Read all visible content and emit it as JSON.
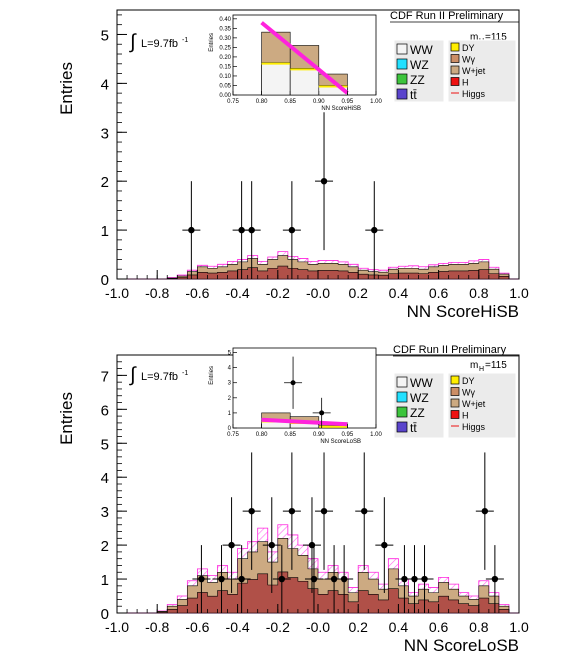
{
  "colors": {
    "WW": "#f4f4f4",
    "WZ": "#22e0ff",
    "ZZ": "#3cc43c",
    "tt": "#5a44cc",
    "DY": "#ffee00",
    "Wg": "#cc8e66",
    "Wjet": "#ccaa82",
    "H": "#ee1111",
    "Higgs": "#ff22dd",
    "hatch": "#ff66ee",
    "stack_dark": "#b05048"
  },
  "chart_data": [
    {
      "type": "bar",
      "panel": "top",
      "header": "CDF Run II Preliminary",
      "mass_label": "m",
      "mass_sub": "H",
      "mass_value": "=115",
      "lumi_prefix": "L=9.7fb",
      "lumi_sup": "-1",
      "integral_symbol": "∫",
      "xlabel": "NN ScoreHiSB",
      "ylabel": "Entries",
      "xlim": [
        -1.0,
        1.0
      ],
      "ylim": [
        0,
        5.5
      ],
      "xtick_labels": [
        "-1.0",
        "-0.8",
        "-0.6",
        "-0.4",
        "-0.2",
        "-0.0",
        "0.2",
        "0.4",
        "0.6",
        "0.8",
        "1.0"
      ],
      "ytick_labels": [
        "0",
        "1",
        "2",
        "3",
        "4",
        "5"
      ],
      "legend_left": [
        "WW",
        "WZ",
        "ZZ",
        "tt̄"
      ],
      "legend_right": [
        "DY",
        "Wγ",
        "W+jet",
        "H",
        "Higgs"
      ],
      "bin_edges": [
        -1.0,
        -0.95,
        -0.9,
        -0.85,
        -0.8,
        -0.75,
        -0.7,
        -0.65,
        -0.6,
        -0.55,
        -0.5,
        -0.45,
        -0.4,
        -0.35,
        -0.3,
        -0.25,
        -0.2,
        -0.15,
        -0.1,
        -0.05,
        0.0,
        0.05,
        0.1,
        0.15,
        0.2,
        0.25,
        0.3,
        0.35,
        0.4,
        0.45,
        0.5,
        0.55,
        0.6,
        0.65,
        0.7,
        0.75,
        0.8,
        0.85,
        0.9,
        0.95,
        1.0
      ],
      "series": [
        {
          "name": "W+jet",
          "values": [
            0,
            0,
            0,
            0,
            0,
            0.02,
            0.06,
            0.15,
            0.25,
            0.22,
            0.25,
            0.3,
            0.35,
            0.42,
            0.3,
            0.4,
            0.48,
            0.4,
            0.35,
            0.3,
            0.32,
            0.32,
            0.3,
            0.25,
            0.18,
            0.15,
            0.14,
            0.2,
            0.22,
            0.22,
            0.2,
            0.25,
            0.28,
            0.3,
            0.3,
            0.32,
            0.35,
            0.2,
            0.1,
            0
          ]
        },
        {
          "name": "Higgs",
          "values": [
            0,
            0,
            0,
            0,
            0,
            0.03,
            0.08,
            0.18,
            0.28,
            0.26,
            0.3,
            0.36,
            0.4,
            0.48,
            0.36,
            0.45,
            0.56,
            0.46,
            0.42,
            0.36,
            0.38,
            0.38,
            0.35,
            0.3,
            0.22,
            0.19,
            0.18,
            0.24,
            0.26,
            0.27,
            0.25,
            0.29,
            0.32,
            0.34,
            0.34,
            0.37,
            0.4,
            0.24,
            0.12,
            0
          ]
        }
      ],
      "points": [
        {
          "x": -0.63,
          "y": 1,
          "err": 1
        },
        {
          "x": -0.38,
          "y": 1,
          "err": 1
        },
        {
          "x": -0.33,
          "y": 1,
          "err": 1
        },
        {
          "x": -0.13,
          "y": 1,
          "err": 1
        },
        {
          "x": 0.03,
          "y": 2,
          "err": 1.41
        },
        {
          "x": 0.28,
          "y": 1,
          "err": 1
        }
      ],
      "inset": {
        "xlabel": "NN ScoreHiSB",
        "ylabel": "Entries",
        "xlim": [
          0.75,
          1.0
        ],
        "ylim": [
          0,
          0.42
        ],
        "xtick_labels": [
          "0.75",
          "0.80",
          "0.85",
          "0.90",
          "0.95",
          "1.00"
        ],
        "ytick_labels": [
          "0.00",
          "0.05",
          "0.10",
          "0.15",
          "0.20",
          "0.25",
          "0.30",
          "0.35",
          "0.40"
        ],
        "bin_edges": [
          0.8,
          0.85,
          0.9,
          0.95
        ],
        "stack_total": [
          0.33,
          0.26,
          0.11
        ],
        "ww_level": [
          0.17,
          0.14,
          0.05
        ],
        "higgs_line": [
          [
            0.8,
            0.38
          ],
          [
            0.95,
            0.01
          ]
        ],
        "points": []
      }
    },
    {
      "type": "bar",
      "panel": "bottom",
      "header": "CDF Run II Preliminary",
      "mass_label": "m",
      "mass_sub": "H",
      "mass_value": "=115",
      "lumi_prefix": "L=9.7fb",
      "lumi_sup": "-1",
      "integral_symbol": "∫",
      "xlabel": "NN ScoreLoSB",
      "ylabel": "Entries",
      "xlim": [
        -1.0,
        1.0
      ],
      "ylim": [
        0,
        7.6
      ],
      "xtick_labels": [
        "-1.0",
        "-0.8",
        "-0.6",
        "-0.4",
        "-0.2",
        "-0.0",
        "0.2",
        "0.4",
        "0.6",
        "0.8",
        "1.0"
      ],
      "ytick_labels": [
        "0",
        "1",
        "2",
        "3",
        "4",
        "5",
        "6",
        "7"
      ],
      "legend_left": [
        "WW",
        "WZ",
        "ZZ",
        "tt̄"
      ],
      "legend_right": [
        "DY",
        "Wγ",
        "W+jet",
        "H",
        "Higgs"
      ],
      "bin_edges": [
        -1.0,
        -0.95,
        -0.9,
        -0.85,
        -0.8,
        -0.75,
        -0.7,
        -0.65,
        -0.6,
        -0.55,
        -0.5,
        -0.45,
        -0.4,
        -0.35,
        -0.3,
        -0.25,
        -0.2,
        -0.15,
        -0.1,
        -0.05,
        0.0,
        0.05,
        0.1,
        0.15,
        0.2,
        0.25,
        0.3,
        0.35,
        0.4,
        0.45,
        0.5,
        0.55,
        0.6,
        0.65,
        0.7,
        0.75,
        0.8,
        0.85,
        0.9,
        0.95,
        1.0
      ],
      "series": [
        {
          "name": "W+jet",
          "values": [
            0,
            0,
            0,
            0,
            0.05,
            0.2,
            0.4,
            0.8,
            1.1,
            0.9,
            1.2,
            1.0,
            1.6,
            1.8,
            2.1,
            1.5,
            2.2,
            1.9,
            1.7,
            1.3,
            1.0,
            1.2,
            1.0,
            0.6,
            1.2,
            1.0,
            0.7,
            1.3,
            0.8,
            0.5,
            0.7,
            0.6,
            0.9,
            0.7,
            0.5,
            0.4,
            0.8,
            0.5,
            0.2,
            0
          ]
        },
        {
          "name": "Higgs",
          "values": [
            0,
            0,
            0,
            0,
            0.06,
            0.25,
            0.5,
            0.95,
            1.3,
            1.1,
            1.4,
            1.2,
            1.9,
            2.1,
            2.5,
            1.8,
            2.6,
            2.3,
            2.0,
            1.6,
            1.2,
            1.4,
            1.2,
            0.75,
            1.4,
            1.2,
            0.85,
            1.6,
            1.0,
            0.6,
            0.85,
            0.75,
            1.05,
            0.85,
            0.6,
            0.5,
            0.95,
            0.6,
            0.25,
            0
          ]
        }
      ],
      "points": [
        {
          "x": -0.58,
          "y": 1,
          "err": 1
        },
        {
          "x": -0.48,
          "y": 1,
          "err": 1
        },
        {
          "x": -0.43,
          "y": 2,
          "err": 1.41
        },
        {
          "x": -0.38,
          "y": 1,
          "err": 1
        },
        {
          "x": -0.33,
          "y": 3,
          "err": 1.73
        },
        {
          "x": -0.23,
          "y": 2,
          "err": 1.41
        },
        {
          "x": -0.18,
          "y": 1,
          "err": 1
        },
        {
          "x": -0.13,
          "y": 3,
          "err": 1.73
        },
        {
          "x": -0.03,
          "y": 2,
          "err": 1.41
        },
        {
          "x": -0.02,
          "y": 1,
          "err": 1
        },
        {
          "x": 0.03,
          "y": 3,
          "err": 1.73
        },
        {
          "x": 0.08,
          "y": 1,
          "err": 1
        },
        {
          "x": 0.13,
          "y": 1,
          "err": 1
        },
        {
          "x": 0.23,
          "y": 3,
          "err": 1.73
        },
        {
          "x": 0.33,
          "y": 2,
          "err": 1.41
        },
        {
          "x": 0.43,
          "y": 1,
          "err": 1
        },
        {
          "x": 0.48,
          "y": 1,
          "err": 1
        },
        {
          "x": 0.53,
          "y": 1,
          "err": 1
        },
        {
          "x": 0.83,
          "y": 3,
          "err": 1.73
        },
        {
          "x": 0.88,
          "y": 1,
          "err": 1
        }
      ],
      "inset": {
        "xlabel": "NN ScoreLoSB",
        "ylabel": "Entries",
        "xlim": [
          0.75,
          1.0
        ],
        "ylim": [
          0,
          5.3
        ],
        "xtick_labels": [
          "0.75",
          "0.80",
          "0.85",
          "0.90",
          "0.95",
          "1.00"
        ],
        "ytick_labels": [
          "0",
          "1",
          "2",
          "3",
          "4",
          "5"
        ],
        "bin_edges": [
          0.8,
          0.85,
          0.9,
          0.95
        ],
        "stack_total": [
          1.0,
          0.75,
          0.35
        ],
        "ww_level": [
          0.5,
          0.4,
          0.15
        ],
        "higgs_line": [
          [
            0.8,
            0.55
          ],
          [
            0.95,
            0.25
          ]
        ],
        "points": [
          {
            "x": 0.855,
            "y": 3,
            "err": 1.73
          },
          {
            "x": 0.905,
            "y": 1,
            "err": 1
          }
        ]
      }
    }
  ]
}
